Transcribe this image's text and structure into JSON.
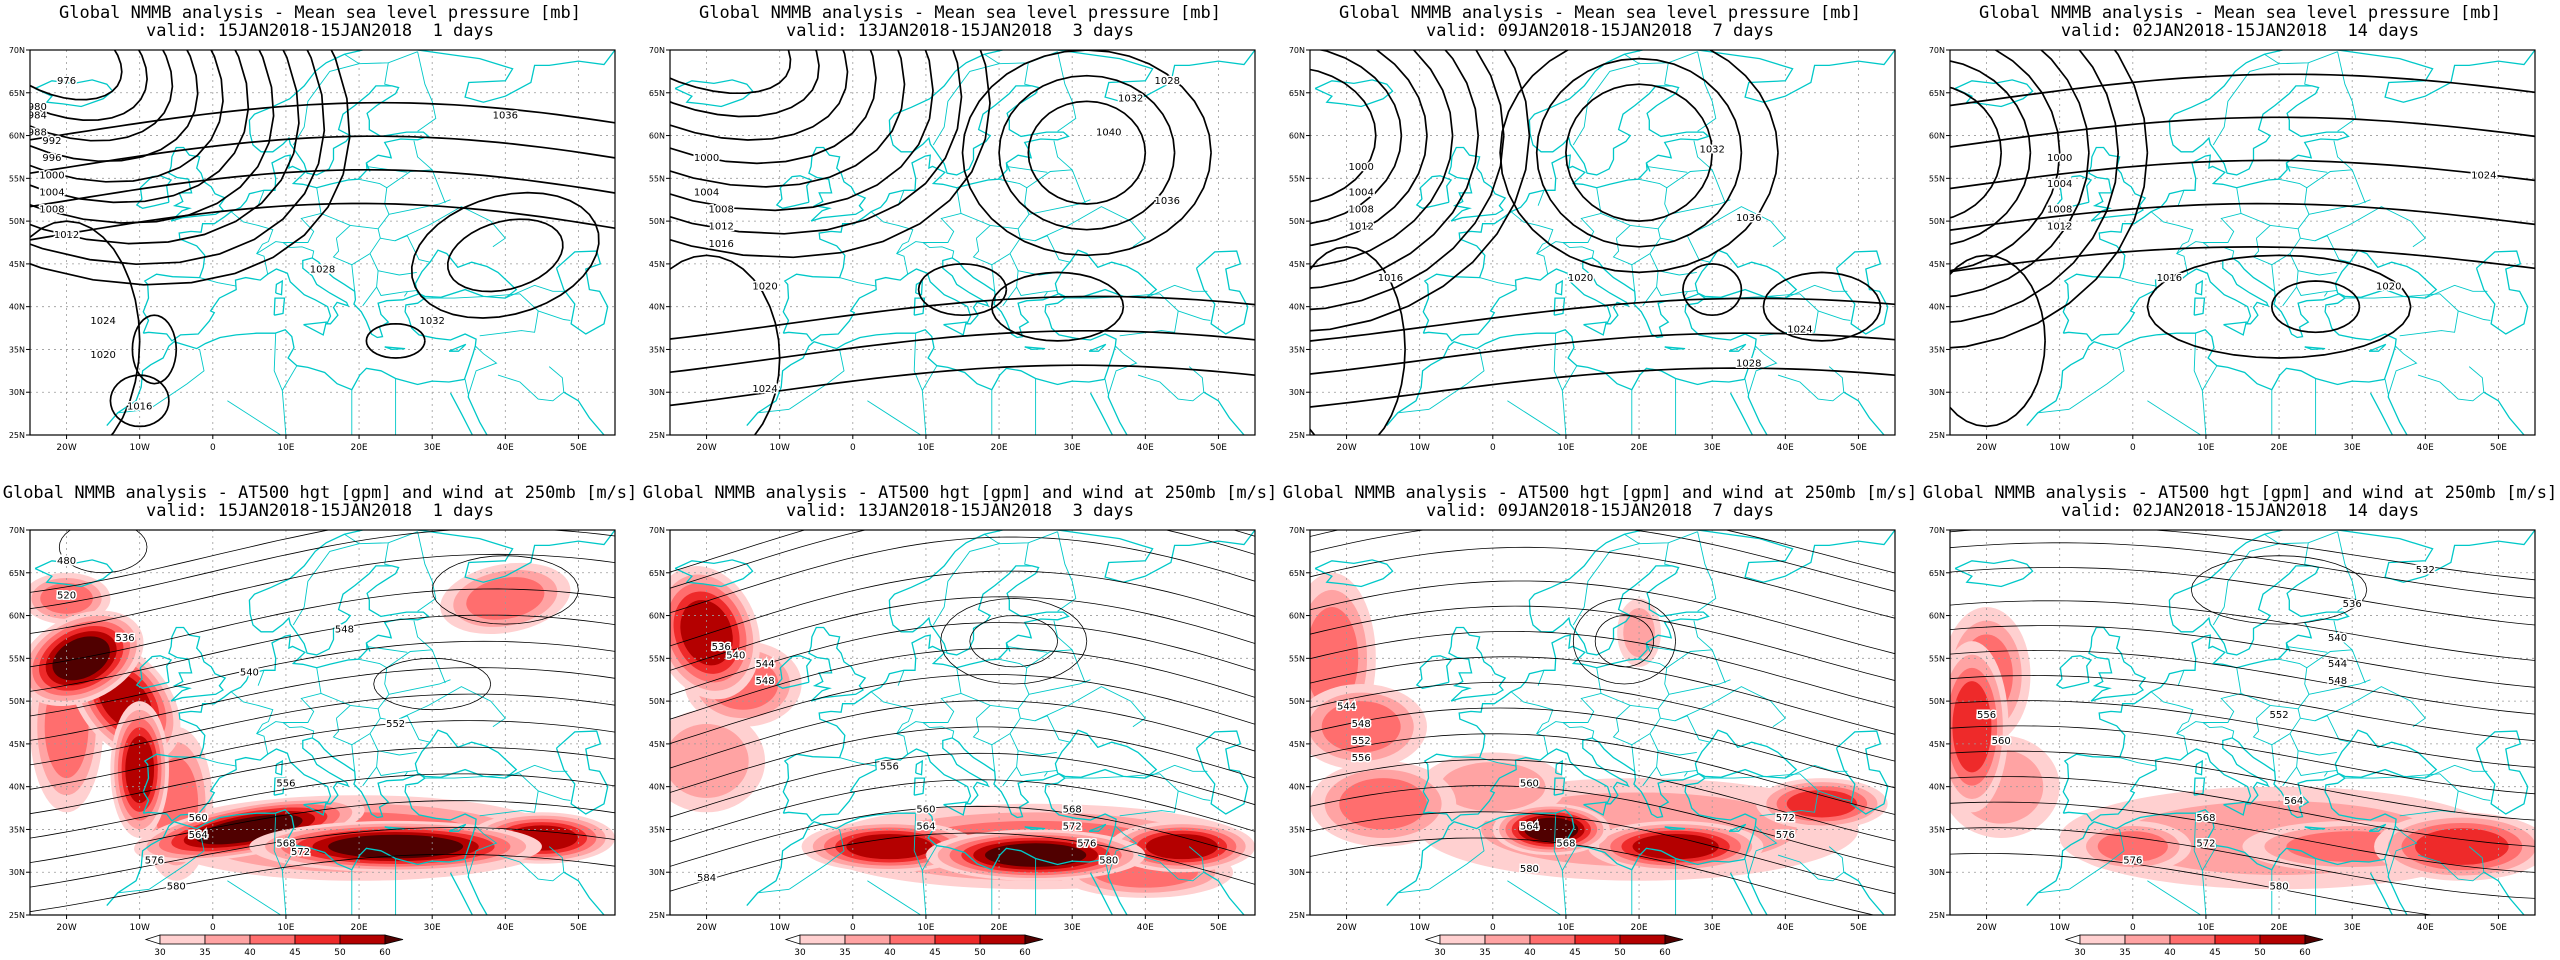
{
  "panels": [
    {
      "row": 0,
      "title": "Global NMMB analysis - Mean sea level pressure [mb]",
      "subtitle": "valid: 15JAN2018-15JAN2018  1 days",
      "field": "mslp"
    },
    {
      "row": 0,
      "title": "Global NMMB analysis - Mean sea level pressure [mb]",
      "subtitle": "valid: 13JAN2018-15JAN2018  3 days",
      "field": "mslp"
    },
    {
      "row": 0,
      "title": "Global NMMB analysis - Mean sea level pressure [mb]",
      "subtitle": "valid: 09JAN2018-15JAN2018  7 days",
      "field": "mslp"
    },
    {
      "row": 0,
      "title": "Global NMMB analysis - Mean sea level pressure [mb]",
      "subtitle": "valid: 02JAN2018-15JAN2018  14 days",
      "field": "mslp"
    },
    {
      "row": 1,
      "title": "Global NMMB analysis - AT500 hgt [gpm] and wind at 250mb [m/s]",
      "subtitle": "valid: 15JAN2018-15JAN2018  1 days",
      "field": "z500_wind"
    },
    {
      "row": 1,
      "title": "Global NMMB analysis - AT500 hgt [gpm] and wind at 250mb [m/s]",
      "subtitle": "valid: 13JAN2018-15JAN2018  3 days",
      "field": "z500_wind"
    },
    {
      "row": 1,
      "title": "Global NMMB analysis - AT500 hgt [gpm] and wind at 250mb [m/s]",
      "subtitle": "valid: 09JAN2018-15JAN2018  7 days",
      "field": "z500_wind"
    },
    {
      "row": 1,
      "title": "Global NMMB analysis - AT500 hgt [gpm] and wind at 250mb [m/s]",
      "subtitle": "valid: 02JAN2018-15JAN2018  14 days",
      "field": "z500_wind"
    }
  ],
  "map": {
    "lon_labels": [
      "20W",
      "10W",
      "0",
      "10E",
      "20E",
      "30E",
      "40E",
      "50E"
    ],
    "lat_labels": [
      "70N",
      "65N",
      "60N",
      "55N",
      "50N",
      "45N",
      "40N",
      "35N",
      "30N",
      "25N"
    ],
    "coast_color": "#00c8c8",
    "contour_color": "#000000"
  },
  "mslp_labels": [
    [
      "1016",
      "1020",
      "1024",
      "1028",
      "1032",
      "1036",
      "1012",
      "1008",
      "1004",
      "1000",
      "996",
      "992",
      "988",
      "984",
      "980",
      "976"
    ],
    [
      "1000",
      "1004",
      "1008",
      "1012",
      "1016",
      "1020",
      "1024",
      "1028",
      "1032",
      "1036",
      "1040"
    ],
    [
      "1000",
      "1004",
      "1008",
      "1012",
      "1016",
      "1020",
      "1024",
      "1028",
      "1032",
      "1036"
    ],
    [
      "1000",
      "1004",
      "1008",
      "1012",
      "1016",
      "1020",
      "1024"
    ]
  ],
  "z500_labels": [
    [
      "480",
      "520",
      "536",
      "540",
      "548",
      "552",
      "556",
      "560",
      "564",
      "568",
      "572",
      "576",
      "580"
    ],
    [
      "536",
      "540",
      "544",
      "548",
      "556",
      "560",
      "564",
      "568",
      "572",
      "576",
      "580",
      "584"
    ],
    [
      "544",
      "548",
      "552",
      "556",
      "560",
      "564",
      "568",
      "572",
      "576",
      "580"
    ],
    [
      "532",
      "536",
      "540",
      "544",
      "548",
      "552",
      "556",
      "560",
      "564",
      "568",
      "572",
      "576",
      "580"
    ]
  ],
  "colorbar": {
    "ticks": [
      "30",
      "35",
      "40",
      "45",
      "50",
      "60"
    ],
    "colors": [
      "#ffffff",
      "#ffd0d0",
      "#ffa3a3",
      "#ff6e6e",
      "#ee2a2a",
      "#b40000",
      "#500000"
    ]
  }
}
